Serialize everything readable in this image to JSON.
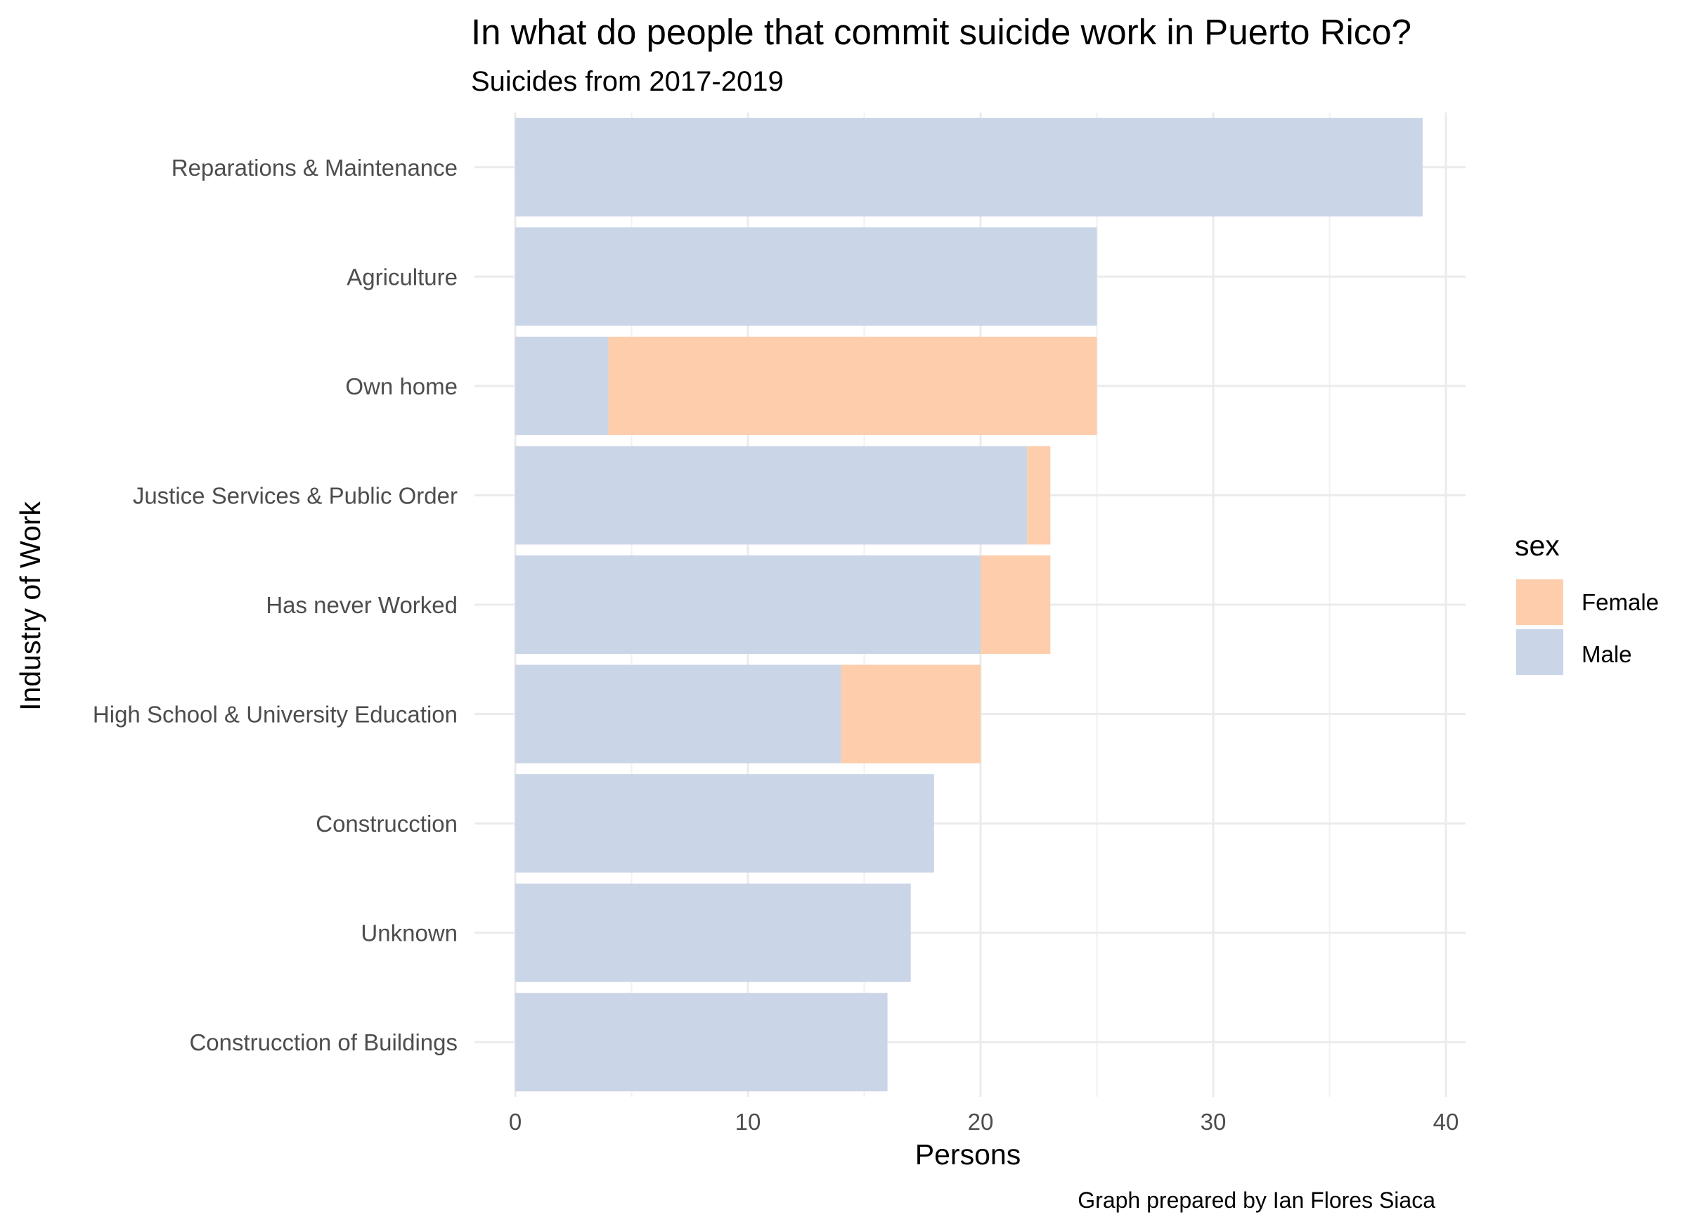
{
  "chart_data": {
    "type": "bar",
    "orientation": "horizontal",
    "stacked": true,
    "title": "In what do people that commit suicide work in Puerto Rico?",
    "subtitle": "Suicides from 2017-2019",
    "xlabel": "Persons",
    "ylabel": "Industry of Work",
    "caption": "Graph prepared by Ian Flores Siaca",
    "xlim": [
      0,
      41
    ],
    "xticks": [
      0,
      10,
      20,
      30,
      40
    ],
    "grid": true,
    "legend": {
      "title": "sex",
      "position": "right",
      "entries": [
        {
          "label": "Female",
          "color": "#FDCDAC"
        },
        {
          "label": "Male",
          "color": "#CBD5E8"
        }
      ]
    },
    "categories": [
      "Reparations & Maintenance",
      "Agriculture",
      "Own home",
      "Justice Services & Public Order",
      "Has never Worked",
      "High School & University Education",
      "Construcction",
      "Unknown",
      "Construcction of Buildings"
    ],
    "series": [
      {
        "name": "Male",
        "color": "#CBD5E8",
        "values": [
          39,
          25,
          4,
          22,
          20,
          14,
          18,
          17,
          16
        ]
      },
      {
        "name": "Female",
        "color": "#FDCDAC",
        "values": [
          0,
          0,
          21,
          1,
          3,
          6,
          0,
          0,
          0
        ]
      }
    ]
  }
}
